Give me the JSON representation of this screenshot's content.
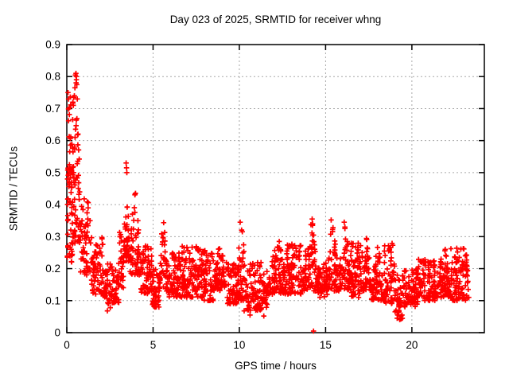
{
  "colors": {
    "marker": "#ff0000",
    "grid": "#a8a8a8",
    "axis": "#000000",
    "background": "#ffffff"
  },
  "chart_data": {
    "type": "scatter",
    "title": "Day 023 of 2025, SRMTID for receiver whng",
    "xlabel": "GPS time / hours",
    "ylabel": "SRMTID / TECUs",
    "series_name": "SRMTID",
    "marker": "plus",
    "grid": true,
    "xlim": [
      0,
      24.2
    ],
    "ylim": [
      0,
      0.9
    ],
    "x_ticks": [
      0,
      5,
      10,
      15,
      20
    ],
    "x_tick_labels": [
      "0",
      "5",
      "10",
      "15",
      "20"
    ],
    "y_ticks": [
      0,
      0.1,
      0.2,
      0.3,
      0.4,
      0.5,
      0.6,
      0.7,
      0.8,
      0.9
    ],
    "y_tick_labels": [
      "0",
      "0.1",
      "0.2",
      "0.3",
      "0.4",
      "0.5",
      "0.6",
      "0.7",
      "0.8",
      "0.9"
    ],
    "seed": 20250123,
    "envelope_segments": [
      {
        "t0": 0.03,
        "t1": 0.35,
        "lo": 0.22,
        "hi": 0.5,
        "shape": "band",
        "n": 45
      },
      {
        "t0": 0.03,
        "t1": 0.45,
        "lo": 0.5,
        "hi": 0.76,
        "shape": "band",
        "n": 30
      },
      {
        "t0": 0.35,
        "t1": 0.8,
        "lo": 0.28,
        "hi": 0.81,
        "shape": "burst",
        "peak": 0.55,
        "n": 55
      },
      {
        "t0": 0.8,
        "t1": 1.4,
        "lo": 0.18,
        "hi": 0.42,
        "shape": "band",
        "n": 55
      },
      {
        "t0": 1.4,
        "t1": 2.1,
        "lo": 0.12,
        "hi": 0.3,
        "shape": "band",
        "n": 65
      },
      {
        "t0": 2.1,
        "t1": 3.05,
        "lo": 0.09,
        "hi": 0.22,
        "shape": "band",
        "n": 85
      },
      {
        "t0": 3.05,
        "t1": 3.3,
        "lo": 0.14,
        "hi": 0.33,
        "shape": "band",
        "n": 25
      },
      {
        "t0": 3.3,
        "t1": 3.65,
        "lo": 0.22,
        "hi": 0.53,
        "shape": "burst",
        "peak": 3.45,
        "n": 40
      },
      {
        "t0": 3.65,
        "t1": 4.3,
        "lo": 0.18,
        "hi": 0.47,
        "shape": "burst",
        "peak": 3.95,
        "n": 60
      },
      {
        "t0": 4.3,
        "t1": 4.95,
        "lo": 0.12,
        "hi": 0.28,
        "shape": "band",
        "n": 60
      },
      {
        "t0": 4.95,
        "t1": 5.35,
        "lo": 0.08,
        "hi": 0.2,
        "shape": "band",
        "n": 40
      },
      {
        "t0": 5.35,
        "t1": 5.85,
        "lo": 0.13,
        "hi": 0.375,
        "shape": "burst",
        "peak": 5.6,
        "n": 50
      },
      {
        "t0": 5.85,
        "t1": 6.6,
        "lo": 0.11,
        "hi": 0.25,
        "shape": "band",
        "n": 70
      },
      {
        "t0": 6.6,
        "t1": 7.6,
        "lo": 0.11,
        "hi": 0.27,
        "shape": "band",
        "n": 95
      },
      {
        "t0": 7.6,
        "t1": 8.5,
        "lo": 0.1,
        "hi": 0.26,
        "shape": "band",
        "n": 85
      },
      {
        "t0": 8.5,
        "t1": 9.2,
        "lo": 0.13,
        "hi": 0.3,
        "shape": "burst",
        "peak": 8.9,
        "n": 70
      },
      {
        "t0": 9.2,
        "t1": 9.85,
        "lo": 0.09,
        "hi": 0.22,
        "shape": "band",
        "n": 60
      },
      {
        "t0": 9.85,
        "t1": 10.45,
        "lo": 0.1,
        "hi": 0.35,
        "shape": "burst",
        "peak": 10.1,
        "n": 60
      },
      {
        "t0": 10.45,
        "t1": 11.65,
        "lo": 0.07,
        "hi": 0.22,
        "shape": "band",
        "n": 110
      },
      {
        "t0": 11.65,
        "t1": 12.75,
        "lo": 0.12,
        "hi": 0.3,
        "shape": "burst",
        "peak": 12.25,
        "n": 105
      },
      {
        "t0": 12.75,
        "t1": 13.6,
        "lo": 0.12,
        "hi": 0.28,
        "shape": "band",
        "n": 80
      },
      {
        "t0": 13.6,
        "t1": 14.55,
        "lo": 0.13,
        "hi": 0.36,
        "shape": "burst",
        "peak": 14.2,
        "n": 90
      },
      {
        "t0": 14.55,
        "t1": 15.1,
        "lo": 0.11,
        "hi": 0.22,
        "shape": "band",
        "n": 50
      },
      {
        "t0": 15.1,
        "t1": 15.75,
        "lo": 0.13,
        "hi": 0.37,
        "shape": "burst",
        "peak": 15.35,
        "n": 65
      },
      {
        "t0": 15.75,
        "t1": 16.45,
        "lo": 0.13,
        "hi": 0.37,
        "shape": "burst",
        "peak": 16.1,
        "n": 70
      },
      {
        "t0": 16.45,
        "t1": 17.15,
        "lo": 0.11,
        "hi": 0.28,
        "shape": "band",
        "n": 65
      },
      {
        "t0": 17.15,
        "t1": 17.65,
        "lo": 0.13,
        "hi": 0.31,
        "shape": "burst",
        "peak": 17.35,
        "n": 50
      },
      {
        "t0": 17.65,
        "t1": 18.4,
        "lo": 0.1,
        "hi": 0.3,
        "shape": "burst",
        "peak": 18.0,
        "n": 70
      },
      {
        "t0": 18.4,
        "t1": 19.0,
        "lo": 0.09,
        "hi": 0.28,
        "shape": "band",
        "n": 55
      },
      {
        "t0": 19.0,
        "t1": 19.45,
        "lo": 0.04,
        "hi": 0.18,
        "shape": "band",
        "n": 40
      },
      {
        "t0": 19.45,
        "t1": 20.35,
        "lo": 0.08,
        "hi": 0.2,
        "shape": "band",
        "n": 80
      },
      {
        "t0": 20.35,
        "t1": 21.35,
        "lo": 0.1,
        "hi": 0.23,
        "shape": "band",
        "n": 90
      },
      {
        "t0": 21.35,
        "t1": 22.25,
        "lo": 0.11,
        "hi": 0.275,
        "shape": "burst",
        "peak": 21.9,
        "n": 85
      },
      {
        "t0": 22.25,
        "t1": 23.3,
        "lo": 0.1,
        "hi": 0.265,
        "shape": "band",
        "n": 100
      }
    ],
    "landmark_points": [
      [
        0.5,
        0.805
      ],
      [
        0.53,
        0.81
      ],
      [
        0.55,
        0.8
      ],
      [
        0.56,
        0.79
      ],
      [
        0.58,
        0.775
      ],
      [
        0.47,
        0.765
      ],
      [
        0.44,
        0.74
      ],
      [
        0.61,
        0.73
      ],
      [
        0.35,
        0.72
      ],
      [
        0.38,
        0.71
      ],
      [
        0.4,
        0.735
      ],
      [
        0.07,
        0.75
      ],
      [
        0.1,
        0.73
      ],
      [
        3.44,
        0.53
      ],
      [
        3.46,
        0.515
      ],
      [
        3.48,
        0.5
      ],
      [
        10.05,
        0.345
      ],
      [
        14.22,
        0.355
      ],
      [
        14.25,
        0.34
      ],
      [
        15.32,
        0.352
      ],
      [
        16.08,
        0.345
      ],
      [
        16.12,
        0.33
      ],
      [
        14.3,
        0.005
      ],
      [
        19.15,
        0.045
      ],
      [
        19.18,
        0.055
      ],
      [
        11.42,
        0.052
      ],
      [
        10.62,
        0.055
      ],
      [
        2.35,
        0.068
      ],
      [
        2.52,
        0.078
      ],
      [
        5.05,
        0.082
      ],
      [
        10.28,
        0.068
      ],
      [
        22.6,
        0.22
      ],
      [
        23.1,
        0.24
      ],
      [
        23.25,
        0.16
      ]
    ]
  }
}
